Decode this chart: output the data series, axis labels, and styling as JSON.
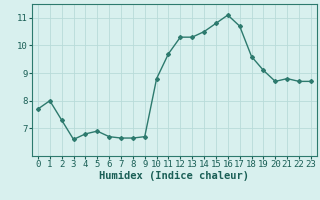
{
  "x": [
    0,
    1,
    2,
    3,
    4,
    5,
    6,
    7,
    8,
    9,
    10,
    11,
    12,
    13,
    14,
    15,
    16,
    17,
    18,
    19,
    20,
    21,
    22,
    23
  ],
  "y": [
    7.7,
    8.0,
    7.3,
    6.6,
    6.8,
    6.9,
    6.7,
    6.65,
    6.65,
    6.7,
    8.8,
    9.7,
    10.3,
    10.3,
    10.5,
    10.8,
    11.1,
    10.7,
    9.6,
    9.1,
    8.7,
    8.8,
    8.7,
    8.7
  ],
  "line_color": "#2d7a6e",
  "bg_color": "#d8f0ee",
  "grid_color": "#b8dbd9",
  "axis_label_color": "#1a5f56",
  "xlabel": "Humidex (Indice chaleur)",
  "ylim": [
    6.0,
    11.5
  ],
  "xlim": [
    -0.5,
    23.5
  ],
  "yticks": [
    7,
    8,
    9,
    10,
    11
  ],
  "xticks": [
    0,
    1,
    2,
    3,
    4,
    5,
    6,
    7,
    8,
    9,
    10,
    11,
    12,
    13,
    14,
    15,
    16,
    17,
    18,
    19,
    20,
    21,
    22,
    23
  ],
  "marker": "D",
  "marker_size": 2.0,
  "line_width": 1.0,
  "xlabel_fontsize": 7.5,
  "tick_fontsize": 6.5,
  "spine_color": "#2d7a6e"
}
